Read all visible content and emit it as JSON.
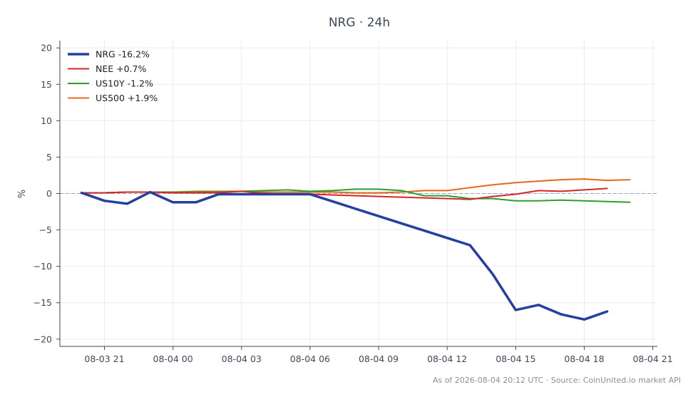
{
  "chart_data": {
    "type": "line",
    "title": "NRG · 24h",
    "xlabel": "",
    "ylabel": "%",
    "ylim": [
      -21,
      21
    ],
    "y_ticks": [
      -20,
      -15,
      -10,
      -5,
      0,
      5,
      10,
      15,
      20
    ],
    "y_tick_labels": [
      "−20",
      "−15",
      "−10",
      "−5",
      "0",
      "5",
      "10",
      "15",
      "20"
    ],
    "x_ticks": [
      "08-03 21",
      "08-04 00",
      "08-04 03",
      "08-04 06",
      "08-04 09",
      "08-04 12",
      "08-04 15",
      "08-04 18",
      "08-04 21"
    ],
    "x_tick_hours": [
      21,
      24,
      27,
      30,
      33,
      36,
      39,
      42,
      45
    ],
    "xlim_hours": [
      19.05,
      45.2
    ],
    "zero_line": true,
    "grid": true,
    "legend_position": "top-left",
    "series": [
      {
        "name": "NRG -16.2%",
        "color": "#2140a0",
        "width": 3.5,
        "x_hours": [
          20,
          21,
          22,
          23,
          24,
          25,
          26,
          27,
          28,
          29,
          30,
          31,
          32,
          33,
          34,
          35,
          36,
          37,
          38,
          39,
          40,
          41,
          42,
          43
        ],
        "values": [
          0.1,
          -1.0,
          -1.4,
          0.2,
          -1.2,
          -1.2,
          -0.1,
          -0.1,
          -0.1,
          -0.1,
          -0.1,
          -1.1,
          -2.1,
          -3.1,
          -4.1,
          -5.1,
          -6.1,
          -7.1,
          -11.1,
          -16.0,
          -15.3,
          -16.6,
          -17.3,
          -16.2
        ]
      },
      {
        "name": "NEE +0.7%",
        "color": "#d62728",
        "width": 2,
        "x_hours": [
          20,
          21,
          22,
          23,
          24,
          25,
          26,
          27,
          28,
          29,
          30,
          31,
          32,
          33,
          34,
          35,
          36,
          37,
          38,
          39,
          40,
          41,
          42,
          43
        ],
        "values": [
          0.1,
          0.1,
          0.2,
          0.2,
          0.1,
          0.1,
          0.1,
          0.3,
          0.0,
          -0.1,
          -0.1,
          -0.2,
          -0.3,
          -0.4,
          -0.5,
          -0.6,
          -0.7,
          -0.8,
          -0.4,
          -0.1,
          0.4,
          0.3,
          0.5,
          0.7
        ]
      },
      {
        "name": "US10Y -1.2%",
        "color": "#2ca02c",
        "width": 2,
        "x_hours": [
          20,
          21,
          22,
          23,
          24,
          25,
          26,
          27,
          28,
          29,
          30,
          31,
          32,
          33,
          34,
          35,
          36,
          37,
          38,
          39,
          40,
          41,
          42,
          43,
          44
        ],
        "values": [
          0.1,
          0.1,
          0.2,
          0.2,
          0.2,
          0.2,
          0.2,
          0.3,
          0.4,
          0.5,
          0.3,
          0.4,
          0.6,
          0.6,
          0.4,
          -0.3,
          -0.3,
          -0.7,
          -0.7,
          -1.0,
          -1.0,
          -0.9,
          -1.0,
          -1.1,
          -1.2
        ]
      },
      {
        "name": "US500 +1.9%",
        "color": "#e8681c",
        "width": 2,
        "x_hours": [
          20,
          21,
          22,
          23,
          24,
          25,
          26,
          27,
          28,
          29,
          30,
          31,
          32,
          33,
          34,
          35,
          36,
          37,
          38,
          39,
          40,
          41,
          42,
          43,
          44
        ],
        "values": [
          0.1,
          0.1,
          0.2,
          0.2,
          0.2,
          0.3,
          0.3,
          0.3,
          0.2,
          0.2,
          0.2,
          0.2,
          0.1,
          0.1,
          0.2,
          0.4,
          0.4,
          0.8,
          1.2,
          1.5,
          1.7,
          1.9,
          2.0,
          1.8,
          1.9
        ]
      }
    ]
  },
  "footer": "As of 2026-08-04 20:12 UTC · Source: CoinUnited.io market API"
}
